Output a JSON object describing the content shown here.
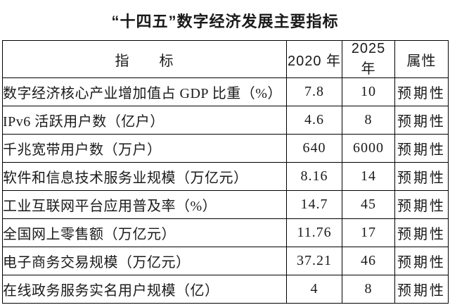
{
  "title": "“十四五”数字经济发展主要指标",
  "colors": {
    "background": "#ffffff",
    "border": "#000000",
    "text": "#1a1a1a"
  },
  "table": {
    "headers": {
      "indicator": "指　　标",
      "y2020": "2020 年",
      "y2025": "2025 年",
      "attribute": "属性"
    },
    "rows": [
      {
        "indicator": "数字经济核心产业增加值占 GDP 比重（%）",
        "y2020": "7.8",
        "y2025": "10",
        "attribute": "预期性"
      },
      {
        "indicator": "IPv6 活跃用户数（亿户）",
        "y2020": "4.6",
        "y2025": "8",
        "attribute": "预期性"
      },
      {
        "indicator": "千兆宽带用户数（万户）",
        "y2020": "640",
        "y2025": "6000",
        "attribute": "预期性"
      },
      {
        "indicator": "软件和信息技术服务业规模（万亿元）",
        "y2020": "8.16",
        "y2025": "14",
        "attribute": "预期性"
      },
      {
        "indicator": "工业互联网平台应用普及率（%）",
        "y2020": "14.7",
        "y2025": "45",
        "attribute": "预期性"
      },
      {
        "indicator": "全国网上零售额（万亿元）",
        "y2020": "11.76",
        "y2025": "17",
        "attribute": "预期性"
      },
      {
        "indicator": "电子商务交易规模（万亿元）",
        "y2020": "37.21",
        "y2025": "46",
        "attribute": "预期性"
      },
      {
        "indicator": "在线政务服务实名用户规模（亿）",
        "y2020": "4",
        "y2025": "8",
        "attribute": "预期性"
      }
    ]
  }
}
